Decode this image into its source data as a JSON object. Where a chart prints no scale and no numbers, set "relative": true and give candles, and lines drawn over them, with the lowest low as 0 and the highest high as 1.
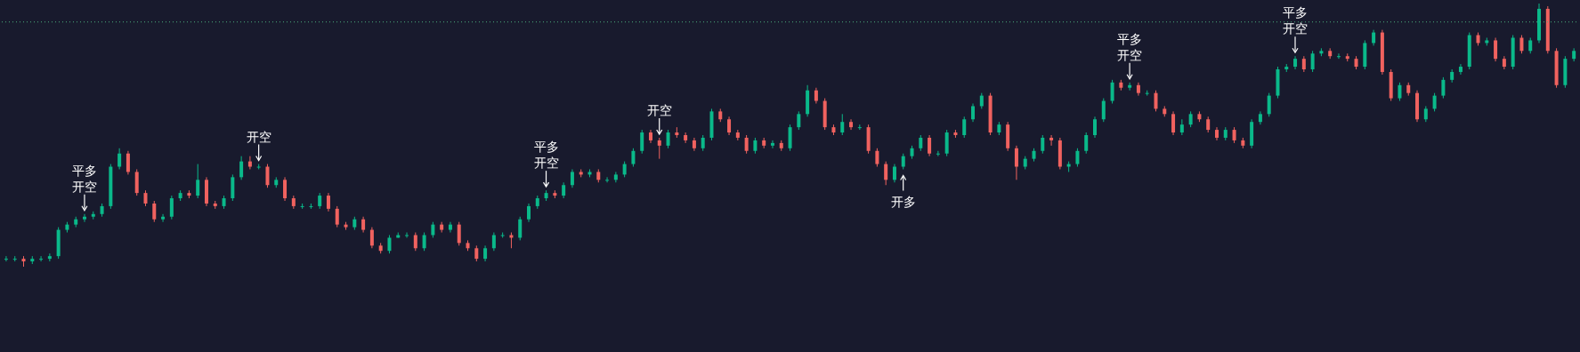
{
  "chart_data": {
    "type": "candlestick",
    "relative": true,
    "categories": [
      null,
      null,
      null,
      null,
      null,
      null,
      null,
      null,
      null,
      null,
      null,
      null,
      null,
      null,
      null,
      null,
      null,
      null,
      null,
      null,
      null,
      null,
      null,
      null,
      null,
      null,
      null,
      null,
      null,
      null,
      null,
      null,
      null,
      null,
      null,
      null,
      null,
      null,
      null,
      null,
      null,
      null,
      null,
      null,
      null,
      null,
      null,
      null,
      null,
      null,
      null,
      null,
      null,
      null,
      null,
      null,
      null,
      null,
      null,
      null,
      null,
      null,
      null,
      null,
      null,
      null,
      null,
      null,
      null,
      null,
      null,
      null,
      null,
      null,
      null,
      null,
      null,
      null,
      null,
      null,
      null,
      null,
      null,
      null,
      null,
      null,
      null,
      null,
      null,
      null,
      null,
      null,
      null,
      null,
      null,
      null,
      null,
      null,
      null,
      null,
      null,
      null,
      null,
      null,
      null,
      null,
      null,
      null,
      null,
      null,
      null,
      null,
      null,
      null,
      null,
      null,
      null,
      null,
      null,
      null,
      null,
      null,
      null,
      null,
      null,
      null,
      null,
      null,
      null,
      null,
      null,
      null,
      null,
      null,
      null,
      null,
      null,
      null,
      null,
      null,
      null,
      null,
      null,
      null,
      null,
      null,
      null,
      null,
      null,
      null,
      null,
      null,
      null,
      null,
      null,
      null,
      null,
      null,
      null,
      null,
      null,
      null,
      null,
      null,
      null,
      null,
      null,
      null,
      null,
      null,
      null,
      null,
      null,
      null,
      null,
      null,
      null,
      null,
      null,
      null,
      null
    ],
    "colors": [
      "#0ab98a",
      "#0ab98a",
      "#f0625f",
      "#0ab98a",
      "#0ab98a",
      "#0ab98a",
      "#0ab98a",
      "#0ab98a",
      "#0ab98a",
      "#0ab98a",
      "#0ab98a",
      "#0ab98a",
      "#0ab98a",
      "#0ab98a",
      "#f0625f",
      "#f0625f",
      "#f0625f",
      "#f0625f",
      "#0ab98a",
      "#0ab98a",
      "#0ab98a",
      "#f0625f",
      "#0ab98a",
      "#f0625f",
      "#f0625f",
      "#0ab98a",
      "#0ab98a",
      "#0ab98a",
      "#f0625f",
      "#0ab98a",
      "#f0625f",
      "#0ab98a",
      "#f0625f",
      "#f0625f",
      "#0ab98a",
      "#0ab98a",
      "#0ab98a",
      "#f0625f",
      "#f0625f",
      "#f0625f",
      "#0ab98a",
      "#f0625f",
      "#f0625f",
      "#f0625f",
      "#0ab98a",
      "#0ab98a",
      "#0ab98a",
      "#f0625f",
      "#0ab98a",
      "#0ab98a",
      "#f0625f",
      "#0ab98a",
      "#f0625f",
      "#f0625f",
      "#f0625f",
      "#0ab98a",
      "#0ab98a",
      "#0ab98a",
      "#f0625f",
      "#0ab98a",
      "#0ab98a",
      "#0ab98a",
      "#0ab98a",
      "#f0625f",
      "#0ab98a",
      "#0ab98a",
      "#f0625f",
      "#0ab98a",
      "#f0625f",
      "#0ab98a",
      "#0ab98a",
      "#0ab98a",
      "#0ab98a",
      "#0ab98a",
      "#f0625f",
      "#f0625f",
      "#0ab98a",
      "#f0625f",
      "#f0625f",
      "#f0625f",
      "#0ab98a",
      "#0ab98a",
      "#f0625f",
      "#f0625f",
      "#f0625f",
      "#f0625f",
      "#0ab98a",
      "#f0625f",
      "#0ab98a",
      "#f0625f",
      "#0ab98a",
      "#0ab98a",
      "#0ab98a",
      "#f0625f",
      "#f0625f",
      "#f0625f",
      "#0ab98a",
      "#f0625f",
      "#0ab98a",
      "#f0625f",
      "#f0625f",
      "#f0625f",
      "#0ab98a",
      "#0ab98a",
      "#0ab98a",
      "#0ab98a",
      "#f0625f",
      "#0ab98a",
      "#0ab98a",
      "#f0625f",
      "#0ab98a",
      "#0ab98a",
      "#0ab98a",
      "#f0625f",
      "#0ab98a",
      "#f0625f",
      "#f0625f",
      "#0ab98a",
      "#0ab98a",
      "#0ab98a",
      "#f0625f",
      "#f0625f",
      "#0ab98a",
      "#0ab98a",
      "#0ab98a",
      "#0ab98a",
      "#0ab98a",
      "#0ab98a",
      "#f0625f",
      "#0ab98a",
      "#f0625f",
      "#0ab98a",
      "#f0625f",
      "#f0625f",
      "#f0625f",
      "#0ab98a",
      "#0ab98a",
      "#f0625f",
      "#f0625f",
      "#f0625f",
      "#0ab98a",
      "#f0625f",
      "#f0625f",
      "#0ab98a",
      "#0ab98a",
      "#0ab98a",
      "#0ab98a",
      "#0ab98a",
      "#0ab98a",
      "#f0625f",
      "#0ab98a",
      "#0ab98a",
      "#f0625f",
      "#0ab98a",
      "#f0625f",
      "#f0625f",
      "#0ab98a",
      "#0ab98a",
      "#f0625f",
      "#f0625f",
      "#0ab98a",
      "#f0625f",
      "#f0625f",
      "#0ab98a",
      "#0ab98a",
      "#0ab98a",
      "#0ab98a",
      "#0ab98a",
      "#0ab98a",
      "#f0625f",
      "#0ab98a",
      "#f0625f",
      "#f0625f",
      "#0ab98a",
      "#f0625f",
      "#0ab98a",
      "#0ab98a",
      "#f0625f",
      "#f0625f",
      "#0ab98a",
      "#0ab98a"
    ],
    "ohlc": [
      [
        0.03,
        0.04,
        0.02,
        0.03
      ],
      [
        0.03,
        0.04,
        0.02,
        0.03
      ],
      [
        0.03,
        0.04,
        0,
        0.02
      ],
      [
        0.02,
        0.04,
        0.01,
        0.03
      ],
      [
        0.03,
        0.04,
        0.02,
        0.03
      ],
      [
        0.03,
        0.05,
        0.02,
        0.04
      ],
      [
        0.04,
        0.15,
        0.03,
        0.14
      ],
      [
        0.14,
        0.17,
        0.13,
        0.16
      ],
      [
        0.16,
        0.19,
        0.15,
        0.18
      ],
      [
        0.18,
        0.2,
        0.17,
        0.19
      ],
      [
        0.19,
        0.21,
        0.18,
        0.2
      ],
      [
        0.2,
        0.24,
        0.19,
        0.23
      ],
      [
        0.23,
        0.39,
        0.22,
        0.38
      ],
      [
        0.38,
        0.45,
        0.37,
        0.43
      ],
      [
        0.43,
        0.44,
        0.35,
        0.36
      ],
      [
        0.36,
        0.37,
        0.27,
        0.28
      ],
      [
        0.28,
        0.29,
        0.23,
        0.24
      ],
      [
        0.24,
        0.25,
        0.17,
        0.18
      ],
      [
        0.18,
        0.2,
        0.17,
        0.19
      ],
      [
        0.19,
        0.27,
        0.18,
        0.26
      ],
      [
        0.26,
        0.29,
        0.25,
        0.28
      ],
      [
        0.28,
        0.29,
        0.26,
        0.27
      ],
      [
        0.27,
        0.39,
        0.26,
        0.33
      ],
      [
        0.33,
        0.34,
        0.23,
        0.24
      ],
      [
        0.24,
        0.25,
        0.22,
        0.23
      ],
      [
        0.23,
        0.27,
        0.22,
        0.26
      ],
      [
        0.26,
        0.35,
        0.25,
        0.34
      ],
      [
        0.34,
        0.42,
        0.33,
        0.4
      ],
      [
        0.4,
        0.42,
        0.37,
        0.38
      ],
      [
        0.38,
        0.39,
        0.37,
        0.38
      ],
      [
        0.38,
        0.39,
        0.3,
        0.31
      ],
      [
        0.31,
        0.34,
        0.3,
        0.33
      ],
      [
        0.33,
        0.34,
        0.25,
        0.26
      ],
      [
        0.26,
        0.27,
        0.22,
        0.23
      ],
      [
        0.23,
        0.24,
        0.22,
        0.23
      ],
      [
        0.23,
        0.24,
        0.22,
        0.23
      ],
      [
        0.23,
        0.28,
        0.22,
        0.27
      ],
      [
        0.27,
        0.28,
        0.21,
        0.22
      ],
      [
        0.22,
        0.23,
        0.15,
        0.16
      ],
      [
        0.16,
        0.17,
        0.14,
        0.15
      ],
      [
        0.15,
        0.19,
        0.14,
        0.18
      ],
      [
        0.18,
        0.19,
        0.13,
        0.14
      ],
      [
        0.14,
        0.15,
        0.07,
        0.08
      ],
      [
        0.08,
        0.09,
        0.05,
        0.06
      ],
      [
        0.06,
        0.12,
        0.05,
        0.11
      ],
      [
        0.11,
        0.13,
        0.11,
        0.12
      ],
      [
        0.12,
        0.13,
        0.11,
        0.12
      ],
      [
        0.12,
        0.13,
        0.06,
        0.07
      ],
      [
        0.07,
        0.13,
        0.06,
        0.12
      ],
      [
        0.12,
        0.17,
        0.11,
        0.16
      ],
      [
        0.16,
        0.17,
        0.13,
        0.14
      ],
      [
        0.14,
        0.17,
        0.13,
        0.16
      ],
      [
        0.16,
        0.17,
        0.08,
        0.09
      ],
      [
        0.09,
        0.1,
        0.06,
        0.07
      ],
      [
        0.07,
        0.08,
        0.02,
        0.03
      ],
      [
        0.03,
        0.08,
        0.02,
        0.07
      ],
      [
        0.07,
        0.13,
        0.06,
        0.12
      ],
      [
        0.12,
        0.13,
        0.11,
        0.12
      ],
      [
        0.12,
        0.13,
        0.07,
        0.11
      ],
      [
        0.11,
        0.19,
        0.1,
        0.18
      ],
      [
        0.18,
        0.24,
        0.17,
        0.23
      ],
      [
        0.23,
        0.27,
        0.22,
        0.26
      ],
      [
        0.26,
        0.29,
        0.25,
        0.28
      ],
      [
        0.28,
        0.29,
        0.26,
        0.27
      ],
      [
        0.27,
        0.32,
        0.26,
        0.31
      ],
      [
        0.31,
        0.37,
        0.3,
        0.36
      ],
      [
        0.36,
        0.37,
        0.34,
        0.35
      ],
      [
        0.35,
        0.37,
        0.34,
        0.36
      ],
      [
        0.36,
        0.37,
        0.32,
        0.33
      ],
      [
        0.33,
        0.34,
        0.32,
        0.33
      ],
      [
        0.33,
        0.36,
        0.32,
        0.35
      ],
      [
        0.35,
        0.4,
        0.34,
        0.39
      ],
      [
        0.39,
        0.45,
        0.38,
        0.44
      ],
      [
        0.44,
        0.52,
        0.43,
        0.51
      ],
      [
        0.51,
        0.52,
        0.47,
        0.48
      ],
      [
        0.48,
        0.49,
        0.41,
        0.46
      ],
      [
        0.46,
        0.52,
        0.45,
        0.51
      ],
      [
        0.51,
        0.53,
        0.49,
        0.5
      ],
      [
        0.5,
        0.51,
        0.47,
        0.48
      ],
      [
        0.48,
        0.49,
        0.44,
        0.45
      ],
      [
        0.45,
        0.5,
        0.44,
        0.49
      ],
      [
        0.49,
        0.6,
        0.48,
        0.59
      ],
      [
        0.59,
        0.6,
        0.55,
        0.56
      ],
      [
        0.56,
        0.57,
        0.5,
        0.51
      ],
      [
        0.51,
        0.52,
        0.48,
        0.49
      ],
      [
        0.49,
        0.5,
        0.43,
        0.44
      ],
      [
        0.44,
        0.49,
        0.43,
        0.48
      ],
      [
        0.48,
        0.49,
        0.45,
        0.46
      ],
      [
        0.46,
        0.48,
        0.45,
        0.47
      ],
      [
        0.47,
        0.48,
        0.44,
        0.45
      ],
      [
        0.45,
        0.54,
        0.44,
        0.53
      ],
      [
        0.53,
        0.59,
        0.52,
        0.58
      ],
      [
        0.58,
        0.69,
        0.57,
        0.67
      ],
      [
        0.67,
        0.68,
        0.62,
        0.63
      ],
      [
        0.63,
        0.64,
        0.52,
        0.53
      ],
      [
        0.53,
        0.54,
        0.5,
        0.51
      ],
      [
        0.51,
        0.58,
        0.5,
        0.55
      ],
      [
        0.55,
        0.56,
        0.52,
        0.53
      ],
      [
        0.53,
        0.54,
        0.52,
        0.53
      ],
      [
        0.53,
        0.54,
        0.43,
        0.44
      ],
      [
        0.44,
        0.45,
        0.38,
        0.39
      ],
      [
        0.39,
        0.4,
        0.31,
        0.33
      ],
      [
        0.33,
        0.39,
        0.32,
        0.38
      ],
      [
        0.38,
        0.43,
        0.37,
        0.42
      ],
      [
        0.42,
        0.46,
        0.41,
        0.45
      ],
      [
        0.45,
        0.5,
        0.44,
        0.49
      ],
      [
        0.49,
        0.5,
        0.42,
        0.43
      ],
      [
        0.43,
        0.44,
        0.42,
        0.43
      ],
      [
        0.43,
        0.52,
        0.42,
        0.51
      ],
      [
        0.51,
        0.52,
        0.49,
        0.5
      ],
      [
        0.5,
        0.57,
        0.49,
        0.56
      ],
      [
        0.56,
        0.62,
        0.55,
        0.61
      ],
      [
        0.61,
        0.66,
        0.6,
        0.65
      ],
      [
        0.65,
        0.66,
        0.5,
        0.51
      ],
      [
        0.51,
        0.55,
        0.5,
        0.54
      ],
      [
        0.54,
        0.55,
        0.44,
        0.45
      ],
      [
        0.45,
        0.46,
        0.33,
        0.38
      ],
      [
        0.38,
        0.42,
        0.37,
        0.41
      ],
      [
        0.41,
        0.45,
        0.4,
        0.44
      ],
      [
        0.44,
        0.5,
        0.43,
        0.49
      ],
      [
        0.49,
        0.5,
        0.46,
        0.48
      ],
      [
        0.48,
        0.49,
        0.37,
        0.38
      ],
      [
        0.38,
        0.4,
        0.36,
        0.39
      ],
      [
        0.39,
        0.45,
        0.38,
        0.44
      ],
      [
        0.44,
        0.51,
        0.43,
        0.5
      ],
      [
        0.5,
        0.57,
        0.49,
        0.56
      ],
      [
        0.56,
        0.64,
        0.55,
        0.63
      ],
      [
        0.63,
        0.71,
        0.62,
        0.7
      ],
      [
        0.7,
        0.71,
        0.67,
        0.68
      ],
      [
        0.68,
        0.7,
        0.67,
        0.69
      ],
      [
        0.69,
        0.7,
        0.65,
        0.66
      ],
      [
        0.66,
        0.67,
        0.65,
        0.66
      ],
      [
        0.66,
        0.67,
        0.59,
        0.6
      ],
      [
        0.6,
        0.61,
        0.57,
        0.58
      ],
      [
        0.58,
        0.59,
        0.5,
        0.51
      ],
      [
        0.51,
        0.56,
        0.5,
        0.54
      ],
      [
        0.54,
        0.59,
        0.53,
        0.58
      ],
      [
        0.58,
        0.59,
        0.55,
        0.56
      ],
      [
        0.56,
        0.57,
        0.51,
        0.52
      ],
      [
        0.52,
        0.53,
        0.48,
        0.49
      ],
      [
        0.49,
        0.53,
        0.48,
        0.52
      ],
      [
        0.52,
        0.53,
        0.47,
        0.48
      ],
      [
        0.48,
        0.49,
        0.45,
        0.46
      ],
      [
        0.46,
        0.56,
        0.45,
        0.55
      ],
      [
        0.55,
        0.59,
        0.54,
        0.58
      ],
      [
        0.58,
        0.66,
        0.57,
        0.65
      ],
      [
        0.65,
        0.76,
        0.64,
        0.75
      ],
      [
        0.75,
        0.77,
        0.74,
        0.76
      ],
      [
        0.76,
        0.8,
        0.75,
        0.79
      ],
      [
        0.79,
        0.8,
        0.74,
        0.75
      ],
      [
        0.75,
        0.82,
        0.74,
        0.81
      ],
      [
        0.81,
        0.83,
        0.8,
        0.82
      ],
      [
        0.82,
        0.83,
        0.79,
        0.8
      ],
      [
        0.8,
        0.81,
        0.79,
        0.8
      ],
      [
        0.8,
        0.81,
        0.78,
        0.79
      ],
      [
        0.79,
        0.8,
        0.75,
        0.76
      ],
      [
        0.76,
        0.86,
        0.75,
        0.85
      ],
      [
        0.85,
        0.9,
        0.84,
        0.89
      ],
      [
        0.89,
        0.9,
        0.73,
        0.74
      ],
      [
        0.74,
        0.75,
        0.63,
        0.64
      ],
      [
        0.64,
        0.7,
        0.63,
        0.69
      ],
      [
        0.69,
        0.7,
        0.65,
        0.66
      ],
      [
        0.66,
        0.67,
        0.55,
        0.56
      ],
      [
        0.56,
        0.61,
        0.55,
        0.6
      ],
      [
        0.6,
        0.66,
        0.59,
        0.65
      ],
      [
        0.65,
        0.72,
        0.64,
        0.71
      ],
      [
        0.71,
        0.75,
        0.7,
        0.74
      ],
      [
        0.74,
        0.77,
        0.73,
        0.76
      ],
      [
        0.76,
        0.89,
        0.75,
        0.88
      ],
      [
        0.88,
        0.89,
        0.84,
        0.85
      ],
      [
        0.85,
        0.87,
        0.84,
        0.86
      ],
      [
        0.86,
        0.87,
        0.78,
        0.79
      ],
      [
        0.79,
        0.8,
        0.75,
        0.76
      ],
      [
        0.76,
        0.88,
        0.75,
        0.87
      ],
      [
        0.87,
        0.88,
        0.81,
        0.82
      ],
      [
        0.82,
        0.87,
        0.81,
        0.86
      ],
      [
        0.86,
        1,
        0.85,
        0.98
      ],
      [
        0.98,
        0.99,
        0.81,
        0.82
      ],
      [
        0.82,
        0.83,
        0.68,
        0.69
      ],
      [
        0.69,
        0.8,
        0.68,
        0.79
      ],
      [
        0.79,
        0.83,
        0.78,
        0.82
      ]
    ],
    "annotations": [
      "平多",
      "开空",
      "开空",
      "平多",
      "开空",
      "开空",
      "开多",
      "平多",
      "开空",
      "平多",
      "开空"
    ],
    "ref_lines": [
      {
        "axis": "y",
        "value": 0.93,
        "color": "#4caf7d",
        "line_style": "dotted"
      }
    ]
  }
}
